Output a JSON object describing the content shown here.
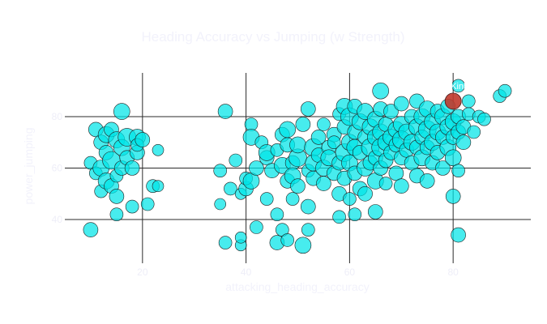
{
  "chart_data": {
    "type": "scatter",
    "title": "Heading Accuracy vs Jumping (w Strength)",
    "xlabel": "attacking_heading_accuracy",
    "ylabel": "power_jumping",
    "xlim": [
      5,
      95
    ],
    "ylim": [
      23,
      97
    ],
    "xticks": [
      20,
      40,
      60,
      80
    ],
    "yticks": [
      40,
      60,
      80
    ],
    "grid": true,
    "marker_color": "#00e5e8",
    "highlight_color": "#c0392b",
    "highlight": {
      "label": "Kinh",
      "x": 80,
      "y": 86,
      "size": 10
    },
    "series": [
      {
        "points": [
          [
            10,
            36,
            9
          ],
          [
            10,
            62,
            8
          ],
          [
            11,
            75,
            9
          ],
          [
            11,
            58,
            8
          ],
          [
            12,
            60,
            10
          ],
          [
            12,
            51,
            8
          ],
          [
            12,
            70,
            9
          ],
          [
            13,
            73,
            10
          ],
          [
            13,
            55,
            10
          ],
          [
            13,
            66,
            9
          ],
          [
            14,
            75,
            9
          ],
          [
            14,
            63,
            11
          ],
          [
            14,
            53,
            9
          ],
          [
            15,
            71,
            10
          ],
          [
            15,
            57,
            8
          ],
          [
            15,
            49,
            9
          ],
          [
            15,
            42,
            8
          ],
          [
            16,
            82,
            10
          ],
          [
            16,
            68,
            10
          ],
          [
            16,
            60,
            9
          ],
          [
            17,
            72,
            11
          ],
          [
            17,
            64,
            9
          ],
          [
            18,
            45,
            8
          ],
          [
            18,
            60,
            9
          ],
          [
            19,
            72,
            10
          ],
          [
            19,
            66,
            9
          ],
          [
            19,
            69,
            8
          ],
          [
            20,
            71,
            9
          ],
          [
            21,
            46,
            8
          ],
          [
            22,
            53,
            8
          ],
          [
            23,
            53,
            7
          ],
          [
            23,
            67,
            7
          ],
          [
            35,
            59,
            8
          ],
          [
            35,
            46,
            7
          ],
          [
            36,
            82,
            9
          ],
          [
            36,
            31,
            8
          ],
          [
            37,
            52,
            8
          ],
          [
            38,
            63,
            8
          ],
          [
            39,
            50,
            7
          ],
          [
            39,
            30,
            7
          ],
          [
            39,
            33,
            7
          ],
          [
            40,
            52,
            9
          ],
          [
            40,
            56,
            8
          ],
          [
            41,
            55,
            10
          ],
          [
            41,
            77,
            8
          ],
          [
            41,
            72,
            10
          ],
          [
            42,
            37,
            8
          ],
          [
            42,
            60,
            9
          ],
          [
            43,
            70,
            8
          ],
          [
            44,
            48,
            8
          ],
          [
            44,
            64,
            9
          ],
          [
            44,
            66,
            10
          ],
          [
            45,
            59,
            9
          ],
          [
            46,
            42,
            8
          ],
          [
            46,
            31,
            9
          ],
          [
            46,
            67,
            8
          ],
          [
            47,
            61,
            10
          ],
          [
            47,
            73,
            9
          ],
          [
            47,
            36,
            8
          ],
          [
            48,
            75,
            10
          ],
          [
            48,
            69,
            9
          ],
          [
            48,
            55,
            9
          ],
          [
            48,
            32,
            8
          ],
          [
            49,
            62,
            9
          ],
          [
            49,
            57,
            10
          ],
          [
            49,
            48,
            8
          ],
          [
            50,
            53,
            9
          ],
          [
            50,
            64,
            11
          ],
          [
            50,
            69,
            10
          ],
          [
            51,
            30,
            10
          ],
          [
            51,
            77,
            9
          ],
          [
            52,
            59,
            8
          ],
          [
            52,
            45,
            9
          ],
          [
            52,
            83,
            9
          ],
          [
            52,
            36,
            8
          ],
          [
            53,
            68,
            11
          ],
          [
            53,
            62,
            10
          ],
          [
            53,
            56,
            9
          ],
          [
            54,
            72,
            9
          ],
          [
            54,
            65,
            9
          ],
          [
            55,
            60,
            10
          ],
          [
            55,
            77,
            8
          ],
          [
            55,
            54,
            9
          ],
          [
            56,
            68,
            9
          ],
          [
            56,
            64,
            10
          ],
          [
            57,
            73,
            9
          ],
          [
            57,
            58,
            9
          ],
          [
            57,
            70,
            8
          ],
          [
            58,
            50,
            9
          ],
          [
            58,
            81,
            8
          ],
          [
            58,
            62,
            9
          ],
          [
            58,
            41,
            8
          ],
          [
            59,
            84,
            10
          ],
          [
            59,
            76,
            9
          ],
          [
            59,
            66,
            11
          ],
          [
            59,
            56,
            9
          ],
          [
            60,
            80,
            11
          ],
          [
            60,
            70,
            10
          ],
          [
            60,
            62,
            10
          ],
          [
            60,
            48,
            8
          ],
          [
            61,
            84,
            9
          ],
          [
            61,
            74,
            9
          ],
          [
            61,
            68,
            10
          ],
          [
            61,
            58,
            9
          ],
          [
            61,
            42,
            8
          ],
          [
            62,
            78,
            10
          ],
          [
            62,
            66,
            9
          ],
          [
            62,
            52,
            9
          ],
          [
            63,
            82,
            10
          ],
          [
            63,
            72,
            9
          ],
          [
            63,
            60,
            10
          ],
          [
            63,
            50,
            9
          ],
          [
            64,
            76,
            10
          ],
          [
            64,
            68,
            11
          ],
          [
            64,
            62,
            9
          ],
          [
            65,
            79,
            10
          ],
          [
            65,
            72,
            10
          ],
          [
            65,
            64,
            9
          ],
          [
            65,
            55,
            10
          ],
          [
            65,
            43,
            9
          ],
          [
            66,
            90,
            10
          ],
          [
            66,
            83,
            9
          ],
          [
            66,
            74,
            10
          ],
          [
            66,
            68,
            11
          ],
          [
            66,
            60,
            9
          ],
          [
            67,
            77,
            9
          ],
          [
            67,
            70,
            10
          ],
          [
            67,
            63,
            9
          ],
          [
            67,
            54,
            8
          ],
          [
            68,
            82,
            9
          ],
          [
            68,
            72,
            10
          ],
          [
            68,
            66,
            9
          ],
          [
            69,
            75,
            10
          ],
          [
            69,
            69,
            9
          ],
          [
            69,
            58,
            9
          ],
          [
            70,
            85,
            9
          ],
          [
            70,
            77,
            10
          ],
          [
            70,
            71,
            11
          ],
          [
            70,
            64,
            9
          ],
          [
            70,
            53,
            9
          ],
          [
            71,
            74,
            10
          ],
          [
            71,
            67,
            9
          ],
          [
            72,
            80,
            9
          ],
          [
            72,
            70,
            10
          ],
          [
            72,
            62,
            9
          ],
          [
            73,
            86,
            9
          ],
          [
            73,
            76,
            10
          ],
          [
            73,
            68,
            9
          ],
          [
            73,
            57,
            9
          ],
          [
            74,
            80,
            10
          ],
          [
            74,
            72,
            9
          ],
          [
            74,
            64,
            10
          ],
          [
            75,
            83,
            10
          ],
          [
            75,
            75,
            11
          ],
          [
            75,
            68,
            9
          ],
          [
            75,
            55,
            9
          ],
          [
            76,
            78,
            10
          ],
          [
            76,
            70,
            10
          ],
          [
            76,
            62,
            9
          ],
          [
            77,
            82,
            9
          ],
          [
            77,
            74,
            10
          ],
          [
            77,
            66,
            9
          ],
          [
            78,
            80,
            10
          ],
          [
            78,
            72,
            9
          ],
          [
            78,
            60,
            9
          ],
          [
            79,
            84,
            9
          ],
          [
            79,
            76,
            10
          ],
          [
            79,
            68,
            10
          ],
          [
            80,
            78,
            10
          ],
          [
            80,
            72,
            9
          ],
          [
            80,
            64,
            10
          ],
          [
            80,
            49,
            9
          ],
          [
            81,
            80,
            9
          ],
          [
            81,
            74,
            9
          ],
          [
            81,
            59,
            8
          ],
          [
            82,
            76,
            9
          ],
          [
            82,
            70,
            9
          ],
          [
            83,
            81,
            8
          ],
          [
            84,
            74,
            8
          ],
          [
            85,
            80,
            8
          ],
          [
            86,
            79,
            8
          ],
          [
            89,
            88,
            8
          ],
          [
            90,
            90,
            8
          ],
          [
            81,
            34,
            9
          ],
          [
            81,
            92,
            8
          ],
          [
            83,
            86,
            8
          ]
        ]
      }
    ]
  }
}
